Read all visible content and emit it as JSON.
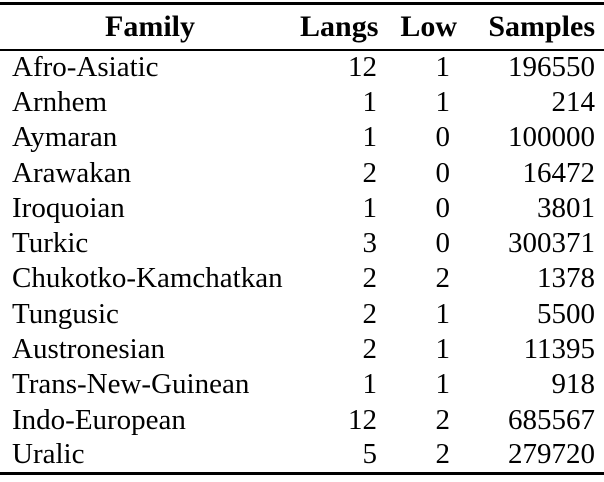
{
  "colors": {
    "text": "#000000",
    "background": "#ffffff",
    "rule": "#000000"
  },
  "table": {
    "columns": {
      "family": "Family",
      "langs": "Langs",
      "low": "Low",
      "samples": "Samples"
    },
    "rows": [
      {
        "family": "Afro-Asiatic",
        "langs": "12",
        "low": "1",
        "samples": "196550"
      },
      {
        "family": "Arnhem",
        "langs": "1",
        "low": "1",
        "samples": "214"
      },
      {
        "family": "Aymaran",
        "langs": "1",
        "low": "0",
        "samples": "100000"
      },
      {
        "family": "Arawakan",
        "langs": "2",
        "low": "0",
        "samples": "16472"
      },
      {
        "family": "Iroquoian",
        "langs": "1",
        "low": "0",
        "samples": "3801"
      },
      {
        "family": "Turkic",
        "langs": "3",
        "low": "0",
        "samples": "300371"
      },
      {
        "family": "Chukotko-Kamchatkan",
        "langs": "2",
        "low": "2",
        "samples": "1378"
      },
      {
        "family": "Tungusic",
        "langs": "2",
        "low": "1",
        "samples": "5500"
      },
      {
        "family": "Austronesian",
        "langs": "2",
        "low": "1",
        "samples": "11395"
      },
      {
        "family": "Trans-New-Guinean",
        "langs": "1",
        "low": "1",
        "samples": "918"
      },
      {
        "family": "Indo-European",
        "langs": "12",
        "low": "2",
        "samples": "685567"
      },
      {
        "family": "Uralic",
        "langs": "5",
        "low": "2",
        "samples": "279720"
      }
    ]
  }
}
